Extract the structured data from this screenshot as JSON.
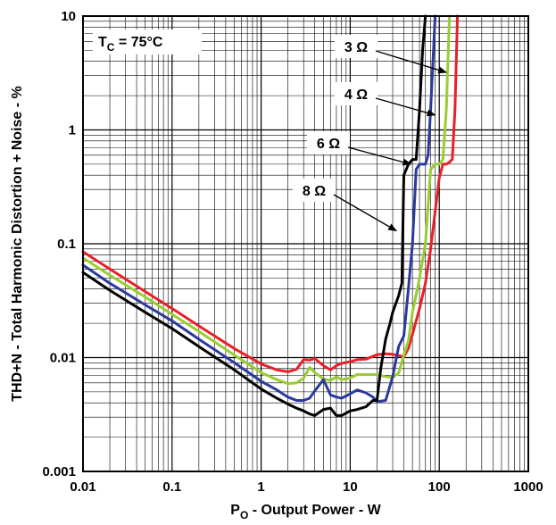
{
  "chart_data": {
    "type": "line",
    "title": "",
    "xlabel": "P",
    "xlabel_sub": "O",
    "xlabel_rest": " - Output Power - W",
    "ylabel": "THD+N - Total Harmonic Distortion + Noise - %",
    "xscale": "log",
    "yscale": "log",
    "xlim": [
      0.01,
      1000
    ],
    "ylim": [
      0.001,
      10
    ],
    "grid": true,
    "xticks": [
      "0.01",
      "0.1",
      "1",
      "10",
      "100",
      "1000"
    ],
    "yticks": [
      "0.001",
      "0.01",
      "0.1",
      "1",
      "10"
    ],
    "condition": {
      "main": "T",
      "sub": "C",
      "rest": " = 75°C"
    },
    "series": [
      {
        "name": "3 Ω",
        "color": "#e8202a",
        "x": [
          0.01,
          0.02,
          0.05,
          0.1,
          0.2,
          0.5,
          1,
          1.5,
          2,
          2.5,
          3,
          3.5,
          4,
          5,
          6,
          7,
          8,
          10,
          12,
          15,
          20,
          25,
          30,
          35,
          40,
          45,
          50,
          60,
          70,
          80,
          100,
          110,
          120,
          130,
          140,
          150,
          160
        ],
        "y": [
          0.085,
          0.06,
          0.038,
          0.027,
          0.019,
          0.012,
          0.0088,
          0.0078,
          0.0075,
          0.0079,
          0.0096,
          0.0095,
          0.0098,
          0.0085,
          0.0078,
          0.0085,
          0.0089,
          0.0092,
          0.0096,
          0.0097,
          0.0106,
          0.0108,
          0.0107,
          0.0104,
          0.0102,
          0.012,
          0.016,
          0.027,
          0.045,
          0.09,
          0.38,
          0.5,
          0.5,
          0.52,
          0.55,
          1.5,
          10
        ]
      },
      {
        "name": "4 Ω",
        "color": "#9acd32",
        "x": [
          0.01,
          0.02,
          0.05,
          0.1,
          0.2,
          0.5,
          1,
          1.5,
          2,
          2.5,
          3,
          3.5,
          4,
          5,
          6,
          7,
          8,
          10,
          12,
          15,
          20,
          25,
          30,
          35,
          40,
          45,
          50,
          60,
          70,
          80,
          90,
          100,
          110,
          120,
          130
        ],
        "y": [
          0.075,
          0.053,
          0.034,
          0.024,
          0.017,
          0.0105,
          0.0074,
          0.0064,
          0.0059,
          0.006,
          0.0066,
          0.0082,
          0.0074,
          0.0065,
          0.0063,
          0.0068,
          0.0064,
          0.0066,
          0.0071,
          0.0071,
          0.0071,
          0.0068,
          0.0067,
          0.0073,
          0.0105,
          0.014,
          0.025,
          0.05,
          0.1,
          0.45,
          0.5,
          0.5,
          0.55,
          1.5,
          10
        ]
      },
      {
        "name": "6 Ω",
        "color": "#2b3a9a",
        "x": [
          0.01,
          0.02,
          0.05,
          0.1,
          0.2,
          0.5,
          1,
          1.5,
          2,
          2.5,
          3,
          3.5,
          4,
          5,
          6,
          7,
          8,
          10,
          12,
          15,
          18,
          20,
          25,
          30,
          35,
          40,
          45,
          50,
          55,
          60,
          65,
          70,
          75,
          80,
          90
        ],
        "y": [
          0.065,
          0.045,
          0.029,
          0.021,
          0.0145,
          0.009,
          0.0062,
          0.0052,
          0.0045,
          0.0042,
          0.0042,
          0.0044,
          0.0051,
          0.0064,
          0.0047,
          0.0045,
          0.0044,
          0.0048,
          0.0052,
          0.0049,
          0.0045,
          0.0041,
          0.0042,
          0.0068,
          0.0125,
          0.0155,
          0.04,
          0.1,
          0.45,
          0.5,
          0.5,
          0.5,
          0.6,
          1.5,
          10
        ]
      },
      {
        "name": "8 Ω",
        "color": "#000000",
        "x": [
          0.01,
          0.02,
          0.05,
          0.1,
          0.2,
          0.5,
          1,
          1.5,
          2,
          2.5,
          3,
          3.5,
          4,
          5,
          6,
          7,
          8,
          10,
          12,
          15,
          18,
          20,
          22,
          25,
          28,
          30,
          35,
          38,
          40,
          45,
          50,
          55,
          60,
          65,
          70
        ],
        "y": [
          0.056,
          0.039,
          0.025,
          0.018,
          0.0125,
          0.0078,
          0.0053,
          0.0044,
          0.0039,
          0.0036,
          0.0034,
          0.0032,
          0.0031,
          0.0035,
          0.0036,
          0.0031,
          0.0031,
          0.0034,
          0.0035,
          0.0037,
          0.0042,
          0.0042,
          0.008,
          0.0145,
          0.02,
          0.025,
          0.035,
          0.045,
          0.4,
          0.5,
          0.55,
          0.55,
          1.5,
          5,
          10
        ]
      }
    ],
    "annotations": [
      {
        "label": "3 Ω",
        "target_x": 120,
        "target_y": 3.2
      },
      {
        "label": "4 Ω",
        "target_x": 90,
        "target_y": 1.35
      },
      {
        "label": "6 Ω",
        "target_x": 48,
        "target_y": 0.5
      },
      {
        "label": "8 Ω",
        "target_x": 33,
        "target_y": 0.13
      }
    ]
  }
}
